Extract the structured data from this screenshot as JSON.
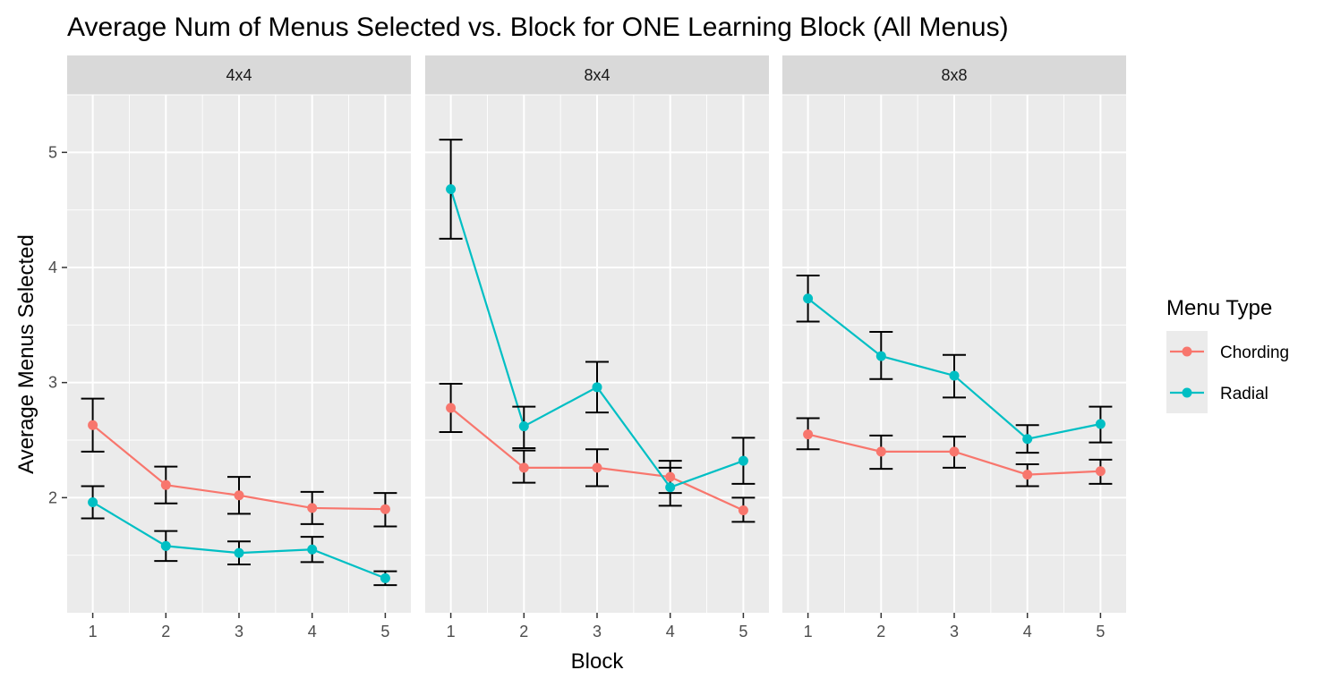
{
  "chart_data": {
    "type": "line",
    "title": "Average Num of Menus Selected vs. Block for ONE Learning Block (All Menus)",
    "xlabel": "Block",
    "ylabel": "Average Menus Selected",
    "x": [
      1,
      2,
      3,
      4,
      5
    ],
    "x_tick_labels": [
      "1",
      "2",
      "3",
      "4",
      "5"
    ],
    "ylim": [
      1.0,
      5.5
    ],
    "y_ticks": [
      2,
      3,
      4,
      5
    ],
    "y_tick_labels": [
      "2",
      "3",
      "4",
      "5"
    ],
    "grid": true,
    "legend": {
      "title": "Menu Type",
      "placement": "right",
      "entries": [
        "Chording",
        "Radial"
      ]
    },
    "colors": {
      "Chording": "#F8766D",
      "Radial": "#00BFC4"
    },
    "facets": [
      {
        "label": "4x4",
        "series": [
          {
            "name": "Chording",
            "values": [
              2.63,
              2.11,
              2.02,
              1.91,
              1.9
            ],
            "lower": [
              2.4,
              1.95,
              1.86,
              1.77,
              1.75
            ],
            "upper": [
              2.86,
              2.27,
              2.18,
              2.05,
              2.04
            ]
          },
          {
            "name": "Radial",
            "values": [
              1.96,
              1.58,
              1.52,
              1.55,
              1.3
            ],
            "lower": [
              1.82,
              1.45,
              1.42,
              1.44,
              1.24
            ],
            "upper": [
              2.1,
              1.71,
              1.62,
              1.66,
              1.36
            ]
          }
        ]
      },
      {
        "label": "8x4",
        "series": [
          {
            "name": "Chording",
            "values": [
              2.78,
              2.26,
              2.26,
              2.18,
              1.89
            ],
            "lower": [
              2.57,
              2.13,
              2.1,
              2.04,
              1.79
            ],
            "upper": [
              2.99,
              2.41,
              2.42,
              2.32,
              2.0
            ]
          },
          {
            "name": "Radial",
            "values": [
              4.68,
              2.62,
              2.96,
              2.09,
              2.32
            ],
            "lower": [
              4.25,
              2.43,
              2.74,
              1.93,
              2.12
            ],
            "upper": [
              5.11,
              2.79,
              3.18,
              2.26,
              2.52
            ]
          }
        ]
      },
      {
        "label": "8x8",
        "series": [
          {
            "name": "Chording",
            "values": [
              2.55,
              2.4,
              2.4,
              2.2,
              2.23
            ],
            "lower": [
              2.42,
              2.25,
              2.26,
              2.1,
              2.12
            ],
            "upper": [
              2.69,
              2.54,
              2.53,
              2.29,
              2.33
            ]
          },
          {
            "name": "Radial",
            "values": [
              3.73,
              3.23,
              3.06,
              2.51,
              2.64
            ],
            "lower": [
              3.53,
              3.03,
              2.87,
              2.39,
              2.48
            ],
            "upper": [
              3.93,
              3.44,
              3.24,
              2.63,
              2.79
            ]
          }
        ]
      }
    ]
  }
}
